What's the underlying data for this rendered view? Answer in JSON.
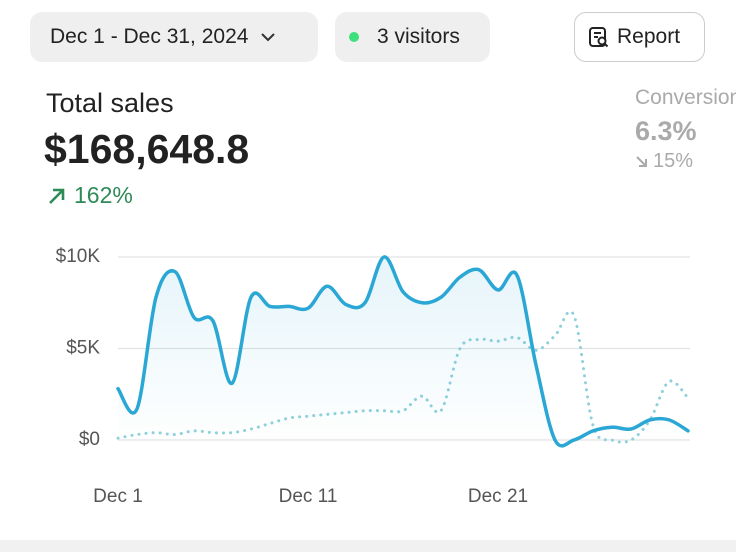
{
  "toolbar": {
    "date_range": "Dec 1 - Dec 31, 2024",
    "visitors": "3 visitors",
    "report": "Report"
  },
  "summary": {
    "label": "Total sales",
    "value": "$168,648.8",
    "change": "162%"
  },
  "secondary": {
    "label": "Conversion",
    "value": "6.3%",
    "change": "15%"
  },
  "chart_data": {
    "type": "line",
    "categories": [
      "Dec 1",
      null,
      null,
      null,
      null,
      null,
      null,
      null,
      null,
      null,
      "Dec 11",
      null,
      null,
      null,
      null,
      null,
      null,
      null,
      null,
      null,
      "Dec 21",
      null,
      null,
      null,
      null,
      null,
      null,
      null,
      null,
      null,
      null
    ],
    "series": [
      {
        "color": "#2aa7d4",
        "style": "solid",
        "values": [
          2800,
          1700,
          7800,
          9200,
          6700,
          6500,
          3100,
          7800,
          7300,
          7300,
          7200,
          8400,
          7400,
          7500,
          10000,
          8100,
          7500,
          7800,
          8900,
          9300,
          8200,
          9000,
          4100,
          0,
          0,
          500,
          700,
          600,
          1100,
          1100,
          500
        ]
      },
      {
        "color": "#8fd0dc",
        "style": "dotted",
        "values": [
          100,
          300,
          400,
          300,
          500,
          400,
          400,
          600,
          900,
          1200,
          1300,
          1400,
          1500,
          1600,
          1600,
          1600,
          2400,
          1600,
          5000,
          5500,
          5400,
          5600,
          4900,
          5700,
          6800,
          800,
          0,
          0,
          1100,
          3200,
          2300
        ]
      }
    ],
    "ylim": [
      0,
      10000
    ],
    "yticks": [
      {
        "value": 0,
        "label": "$0"
      },
      {
        "value": 5000,
        "label": "$5K"
      },
      {
        "value": 10000,
        "label": "$10K"
      }
    ],
    "grid": true
  }
}
